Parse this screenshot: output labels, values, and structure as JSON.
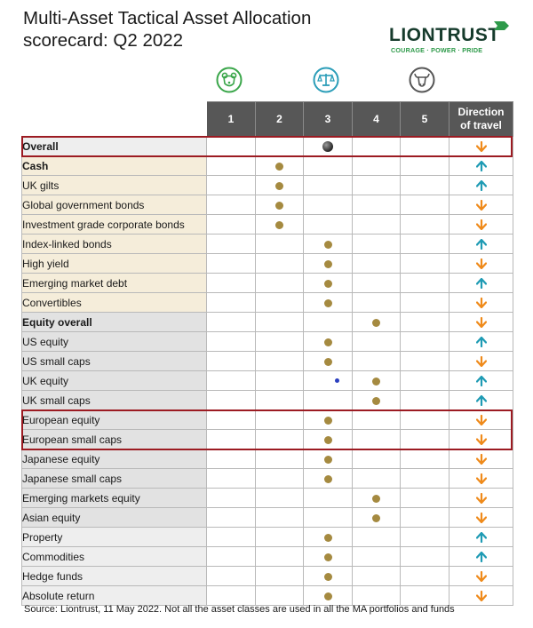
{
  "header": {
    "title_line1": "Multi-Asset Tactical Asset Allocation",
    "title_line2": "scorecard: Q2 2022"
  },
  "logo": {
    "wordmark": "LIONTRUST",
    "tagline": "COURAGE · POWER · PRIDE",
    "colors": {
      "wordmark": "#163b2c",
      "tagline": "#2e9a4a"
    }
  },
  "scale_icons": [
    {
      "name": "bear-icon",
      "color": "#3aa64a"
    },
    {
      "name": "scales-icon",
      "color": "#2a9db8"
    },
    {
      "name": "bull-icon",
      "color": "#555555"
    }
  ],
  "columns": {
    "scores": [
      "1",
      "2",
      "3",
      "4",
      "5"
    ],
    "direction_line1": "Direction",
    "direction_line2": "of travel"
  },
  "colors": {
    "header_bg": "#575757",
    "row_bg_fixed_income": "#f5edda",
    "row_bg_equity": "#e2e2e2",
    "row_bg_other": "#eeeeee",
    "row_bg_overall": "#eeeeee",
    "dot": "#a58a40",
    "arrow_up": "#1f9bb4",
    "arrow_down": "#ef8a1a",
    "highlight_border": "#9c1b22"
  },
  "rows": [
    {
      "label": "Overall",
      "bold": true,
      "group": "overall",
      "score": 3,
      "direction": "down",
      "marker": "large"
    },
    {
      "label": "Cash",
      "bold": true,
      "group": "fixed_income",
      "score": 2,
      "direction": "up"
    },
    {
      "label": "UK gilts",
      "bold": false,
      "group": "fixed_income",
      "score": 2,
      "direction": "up"
    },
    {
      "label": "Global government bonds",
      "bold": false,
      "group": "fixed_income",
      "score": 2,
      "direction": "down"
    },
    {
      "label": "Investment grade corporate bonds",
      "bold": false,
      "group": "fixed_income",
      "score": 2,
      "direction": "down"
    },
    {
      "label": "Index-linked bonds",
      "bold": false,
      "group": "fixed_income",
      "score": 3,
      "direction": "up"
    },
    {
      "label": "High yield",
      "bold": false,
      "group": "fixed_income",
      "score": 3,
      "direction": "down"
    },
    {
      "label": "Emerging market debt",
      "bold": false,
      "group": "fixed_income",
      "score": 3,
      "direction": "up"
    },
    {
      "label": "Convertibles",
      "bold": false,
      "group": "fixed_income",
      "score": 3,
      "direction": "down"
    },
    {
      "label": "Equity overall",
      "bold": true,
      "group": "equity",
      "score": 4,
      "direction": "down"
    },
    {
      "label": "US equity",
      "bold": false,
      "group": "equity",
      "score": 3,
      "direction": "up"
    },
    {
      "label": "US small caps",
      "bold": false,
      "group": "equity",
      "score": 3,
      "direction": "down"
    },
    {
      "label": "UK equity",
      "bold": false,
      "group": "equity",
      "score": 4,
      "direction": "up"
    },
    {
      "label": "UK small caps",
      "bold": false,
      "group": "equity",
      "score": 4,
      "direction": "up"
    },
    {
      "label": "European equity",
      "bold": false,
      "group": "equity",
      "score": 3,
      "direction": "down"
    },
    {
      "label": "European small caps",
      "bold": false,
      "group": "equity",
      "score": 3,
      "direction": "down"
    },
    {
      "label": "Japanese equity",
      "bold": false,
      "group": "equity",
      "score": 3,
      "direction": "down"
    },
    {
      "label": "Japanese small caps",
      "bold": false,
      "group": "equity",
      "score": 3,
      "direction": "down"
    },
    {
      "label": "Emerging markets equity",
      "bold": false,
      "group": "equity",
      "score": 4,
      "direction": "down"
    },
    {
      "label": "Asian equity",
      "bold": false,
      "group": "equity",
      "score": 4,
      "direction": "down"
    },
    {
      "label": "Property",
      "bold": false,
      "group": "other",
      "score": 3,
      "direction": "up"
    },
    {
      "label": "Commodities",
      "bold": false,
      "group": "other",
      "score": 3,
      "direction": "up"
    },
    {
      "label": "Hedge funds",
      "bold": false,
      "group": "other",
      "score": 3,
      "direction": "down"
    },
    {
      "label": "Absolute return",
      "bold": false,
      "group": "other",
      "score": 3,
      "direction": "down"
    }
  ],
  "highlighted_rows": [
    "Overall",
    "European equity",
    "European small caps"
  ],
  "footer": {
    "source": "Source: Liontrust, 11 May 2022. Not all the asset classes are used in all the MA portfolios and funds"
  }
}
